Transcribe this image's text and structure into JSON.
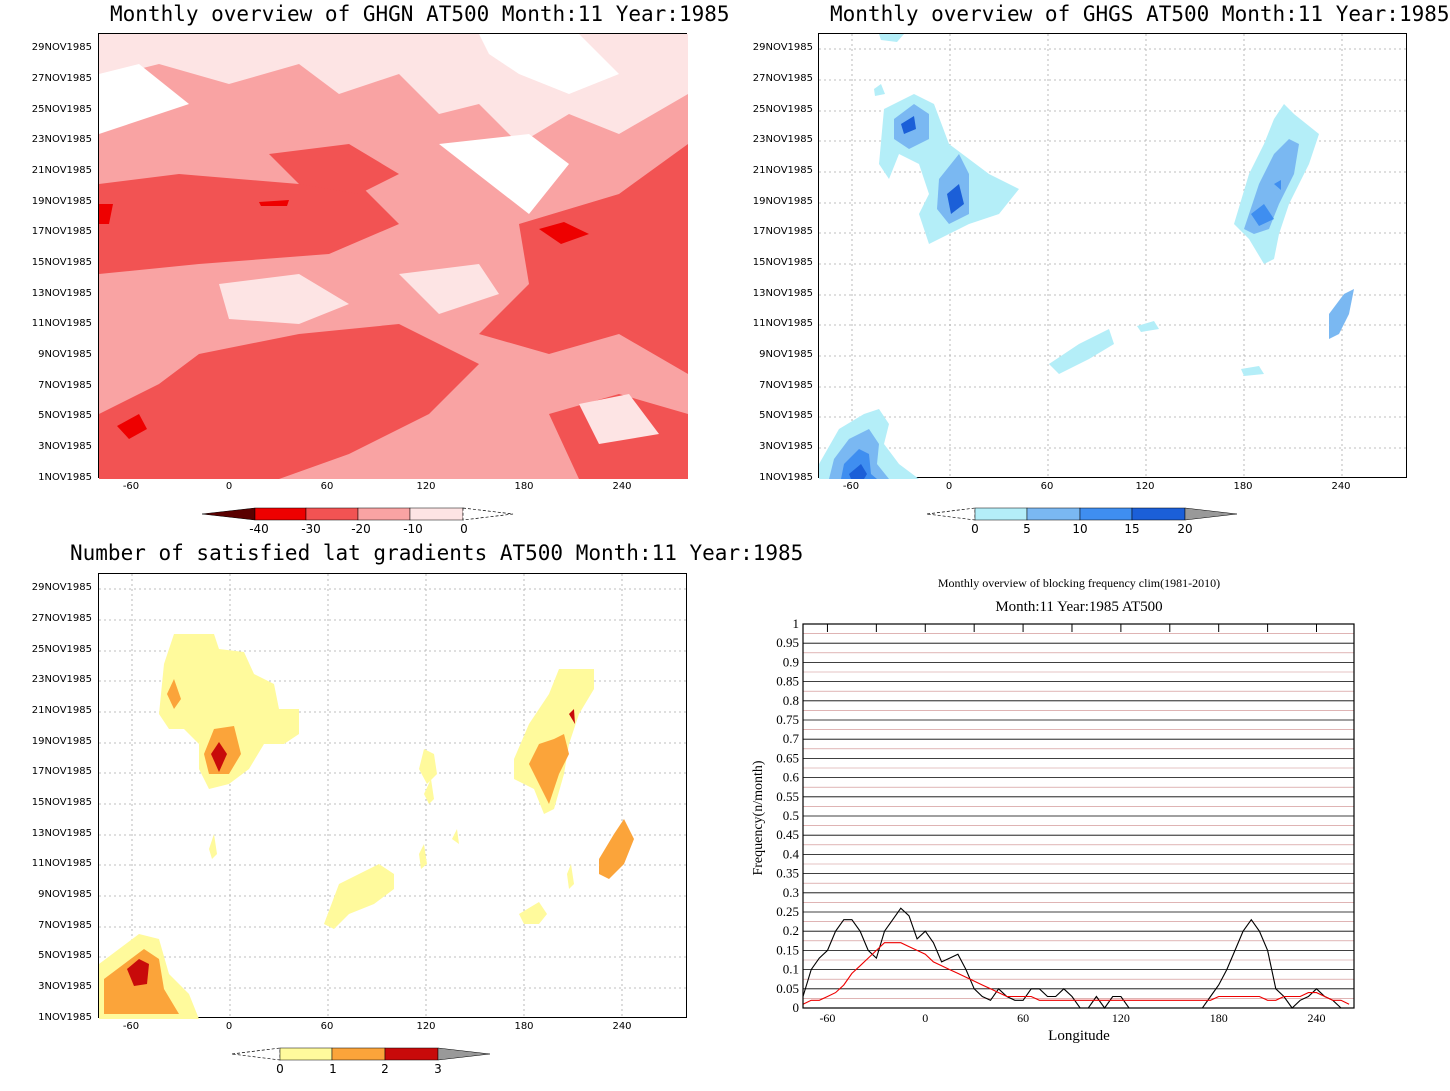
{
  "panels": {
    "ghgn": {
      "title": "Monthly overview of GHGN AT500 Month:11 Year:1985",
      "colorbar_labels": [
        "-40",
        "-30",
        "-20",
        "-10",
        "0"
      ],
      "colors": [
        "#5a0000",
        "#ee0000",
        "#f25353",
        "#f9a3a3",
        "#fde4e4"
      ]
    },
    "ghgs": {
      "title": "Monthly overview of GHGS AT500 Month:11 Year:1985",
      "colorbar_labels": [
        "0",
        "5",
        "10",
        "15",
        "20"
      ],
      "colors": [
        "#b4eef8",
        "#7ab8f2",
        "#3f8ef0",
        "#1b5fd8",
        "#999999"
      ]
    },
    "grad": {
      "title": "Number of satisfied lat gradients AT500 Month:11 Year:1985",
      "colorbar_labels": [
        "0",
        "1",
        "2",
        "3"
      ],
      "colors": [
        "#fffa9c",
        "#fba43a",
        "#c80a0a",
        "#999999"
      ]
    }
  },
  "date_ticks": [
    "29NOV1985",
    "27NOV1985",
    "25NOV1985",
    "23NOV1985",
    "21NOV1985",
    "19NOV1985",
    "17NOV1985",
    "15NOV1985",
    "13NOV1985",
    "11NOV1985",
    "9NOV1985",
    "7NOV1985",
    "5NOV1985",
    "3NOV1985",
    "1NOV1985"
  ],
  "lon_ticks": [
    "-60",
    "0",
    "60",
    "120",
    "180",
    "240"
  ],
  "chart_data": [
    {
      "type": "heatmap",
      "title": "Monthly overview of GHGN AT500 Month:11 Year:1985",
      "xlim": [
        -90,
        280
      ],
      "ylim": [
        "1NOV1985",
        "30NOV1985"
      ],
      "levels": [
        -40,
        -30,
        -20,
        -10,
        0
      ]
    },
    {
      "type": "heatmap",
      "title": "Monthly overview of GHGS AT500 Month:11 Year:1985",
      "xlim": [
        -90,
        280
      ],
      "ylim": [
        "1NOV1985",
        "30NOV1985"
      ],
      "levels": [
        0,
        5,
        10,
        15,
        20
      ]
    },
    {
      "type": "heatmap",
      "title": "Number of satisfied lat gradients AT500 Month:11 Year:1985",
      "xlim": [
        -90,
        280
      ],
      "ylim": [
        "1NOV1985",
        "30NOV1985"
      ],
      "levels": [
        0,
        1,
        2,
        3
      ]
    },
    {
      "type": "line",
      "title": "Monthly overview of blocking frequency clim(1981-2010)",
      "subtitle": "Month:11 Year:1985  AT500",
      "xlabel": "Longitude",
      "ylabel": "Frequency(n/month)",
      "xlim": [
        -75,
        263
      ],
      "ylim": [
        0,
        1
      ],
      "x_ticks": [
        "-60",
        "0",
        "60",
        "120",
        "180",
        "240"
      ],
      "y_ticks": [
        "0",
        "0.05",
        "0.1",
        "0.15",
        "0.2",
        "0.25",
        "0.3",
        "0.35",
        "0.4",
        "0.45",
        "0.5",
        "0.55",
        "0.6",
        "0.65",
        "0.7",
        "0.75",
        "0.8",
        "0.85",
        "0.9",
        "0.95",
        "1"
      ],
      "series": [
        {
          "color": "#000000",
          "x": [
            -75,
            -70,
            -65,
            -60,
            -55,
            -50,
            -45,
            -40,
            -35,
            -30,
            -25,
            -20,
            -15,
            -10,
            -5,
            0,
            5,
            10,
            15,
            20,
            25,
            30,
            35,
            40,
            45,
            50,
            55,
            60,
            65,
            70,
            75,
            80,
            85,
            90,
            95,
            100,
            105,
            110,
            115,
            120,
            125,
            130,
            135,
            140,
            145,
            150,
            155,
            160,
            165,
            170,
            175,
            180,
            185,
            190,
            195,
            200,
            205,
            210,
            215,
            220,
            225,
            230,
            235,
            240,
            245,
            250,
            255,
            260
          ],
          "y": [
            0.03,
            0.1,
            0.13,
            0.15,
            0.2,
            0.23,
            0.23,
            0.2,
            0.15,
            0.13,
            0.2,
            0.23,
            0.26,
            0.24,
            0.18,
            0.2,
            0.17,
            0.12,
            0.13,
            0.14,
            0.1,
            0.05,
            0.03,
            0.02,
            0.05,
            0.03,
            0.02,
            0.02,
            0.05,
            0.05,
            0.03,
            0.03,
            0.05,
            0.03,
            0.0,
            0.0,
            0.03,
            0.0,
            0.03,
            0.03,
            0.0,
            0.0,
            0.0,
            0.0,
            0.0,
            0.0,
            0.0,
            0.0,
            0.0,
            0.0,
            0.03,
            0.06,
            0.1,
            0.15,
            0.2,
            0.23,
            0.2,
            0.15,
            0.05,
            0.03,
            0.0,
            0.02,
            0.03,
            0.05,
            0.03,
            0.02,
            0.0,
            0.0
          ]
        },
        {
          "color": "#ee0000",
          "x": [
            -75,
            -70,
            -65,
            -60,
            -55,
            -50,
            -45,
            -40,
            -35,
            -30,
            -25,
            -20,
            -15,
            -10,
            -5,
            0,
            5,
            10,
            15,
            20,
            25,
            30,
            35,
            40,
            45,
            50,
            55,
            60,
            65,
            70,
            75,
            80,
            85,
            90,
            95,
            100,
            105,
            110,
            115,
            120,
            125,
            130,
            135,
            140,
            145,
            150,
            155,
            160,
            165,
            170,
            175,
            180,
            185,
            190,
            195,
            200,
            205,
            210,
            215,
            220,
            225,
            230,
            235,
            240,
            245,
            250,
            255,
            260
          ],
          "y": [
            0.01,
            0.02,
            0.02,
            0.03,
            0.04,
            0.06,
            0.09,
            0.11,
            0.13,
            0.15,
            0.17,
            0.17,
            0.17,
            0.16,
            0.15,
            0.14,
            0.12,
            0.11,
            0.1,
            0.09,
            0.08,
            0.07,
            0.06,
            0.05,
            0.04,
            0.03,
            0.03,
            0.03,
            0.03,
            0.02,
            0.02,
            0.02,
            0.02,
            0.02,
            0.02,
            0.02,
            0.02,
            0.02,
            0.02,
            0.02,
            0.02,
            0.02,
            0.02,
            0.02,
            0.02,
            0.02,
            0.02,
            0.02,
            0.02,
            0.02,
            0.02,
            0.03,
            0.03,
            0.03,
            0.03,
            0.03,
            0.03,
            0.02,
            0.02,
            0.03,
            0.03,
            0.03,
            0.04,
            0.04,
            0.03,
            0.02,
            0.02,
            0.01
          ]
        }
      ]
    }
  ]
}
